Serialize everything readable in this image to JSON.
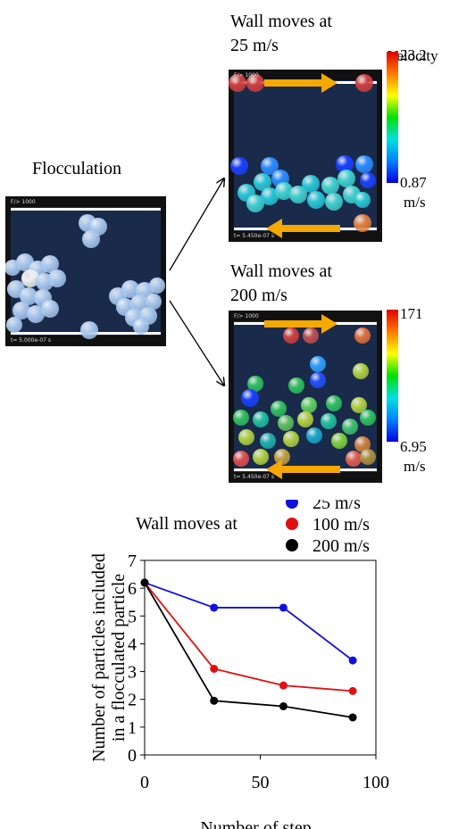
{
  "title_flocculation": "Flocculation",
  "title_25": [
    "Wall moves at",
    "25 m/s"
  ],
  "title_200": [
    "Wall moves at",
    "200 m/s"
  ],
  "velocity_label": "Velocity",
  "panels": {
    "left": {
      "top": "F/> 1000",
      "bottom": "t= 5.000e-07 s"
    },
    "p25": {
      "top": "F/> 1000",
      "bottom": "t= 5.450e-07 s"
    },
    "p200": {
      "top": "F/> 1000",
      "bottom": "t= 5.450e-07 s"
    }
  },
  "colorbar_25": {
    "max": "23.2",
    "min": "0.87",
    "unit": "m/s"
  },
  "colorbar_200": {
    "max": "171",
    "min": "6.95",
    "unit": "m/s"
  },
  "colors": {
    "sim_bg": "#1a2a4a",
    "arrow": "#f5a800",
    "blue": "#1010e0",
    "red": "#e01010",
    "black": "#000000"
  },
  "chart_data": {
    "type": "line",
    "legend_title": "Wall moves at",
    "legend_position": "top",
    "ylabel": [
      "Number of particles included",
      "in a flocculated particle"
    ],
    "xlabel": "Number of step",
    "xlim": [
      0,
      100
    ],
    "ylim": [
      0,
      7
    ],
    "xticks": [
      0,
      50,
      100
    ],
    "yticks": [
      0,
      1,
      2,
      3,
      4,
      5,
      6,
      7
    ],
    "grid": false,
    "series": [
      {
        "name": "25 m/s",
        "color": "#1010e0",
        "x": [
          0,
          30,
          60,
          90
        ],
        "y": [
          6.2,
          5.3,
          5.3,
          3.4
        ]
      },
      {
        "name": "100 m/s",
        "color": "#e01010",
        "x": [
          0,
          30,
          60,
          90
        ],
        "y": [
          6.2,
          3.1,
          2.5,
          2.3
        ]
      },
      {
        "name": "200 m/s",
        "color": "#000000",
        "x": [
          0,
          30,
          60,
          90
        ],
        "y": [
          6.2,
          1.95,
          1.75,
          1.35
        ]
      }
    ]
  }
}
